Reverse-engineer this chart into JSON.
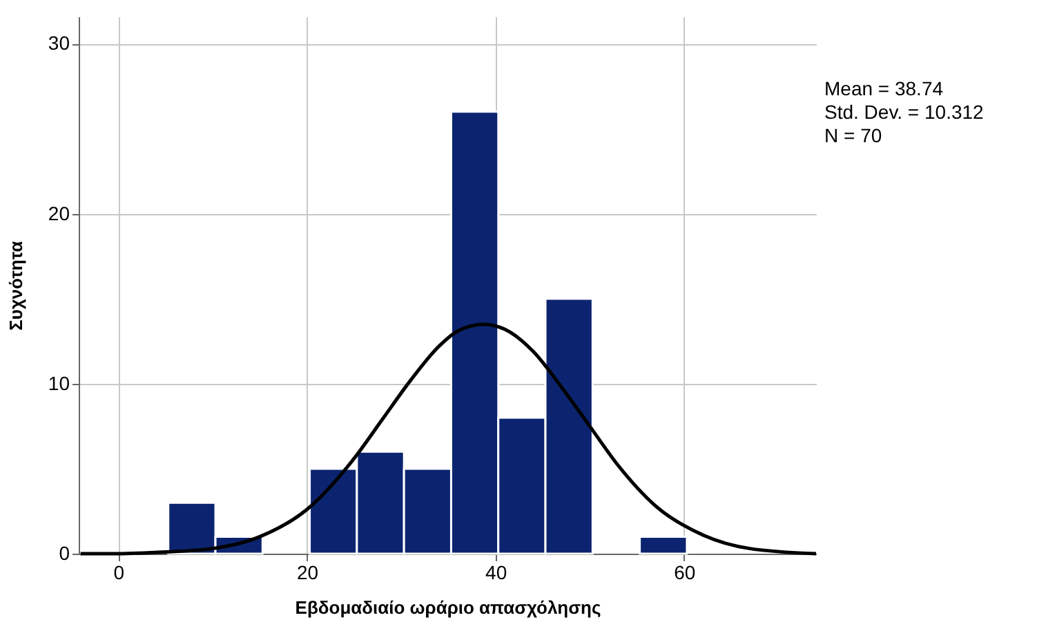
{
  "chart_data": {
    "type": "histogram",
    "xlabel": "Εβδομαδιαίο ωράριο απασχόλησης",
    "ylabel": "Συχνότητα",
    "bins": [
      5.3,
      10.3,
      15.3,
      20.3,
      25.3,
      30.3,
      35.3,
      40.3,
      45.3,
      50.3,
      55.3,
      60.3
    ],
    "series": [
      {
        "type": "histogram",
        "color": "#0c2470",
        "values": [
          3,
          1,
          0,
          5,
          6,
          5,
          26,
          8,
          15,
          0,
          1
        ]
      },
      {
        "type": "line",
        "color": "#000000",
        "x": [
          -4,
          0,
          5,
          10,
          15,
          20,
          25,
          28,
          31,
          34,
          36,
          38.74,
          41,
          44,
          47,
          50,
          53,
          57,
          62,
          67,
          74
        ],
        "values": [
          0,
          0,
          0.1,
          0.3,
          1,
          2.6,
          5.6,
          7.9,
          10.2,
          12.2,
          13.1,
          13.5,
          13.2,
          11.9,
          9.8,
          7.5,
          5.2,
          2.8,
          1.1,
          0.3,
          0
        ]
      }
    ],
    "xlim": [
      -4.2,
      74
    ],
    "ylim": [
      0,
      31.6
    ],
    "xticks": [
      0,
      20,
      40,
      60
    ],
    "yticks": [
      0,
      10,
      20,
      30
    ],
    "grid": true,
    "annotations": [
      "Mean = 38.74",
      "Std. Dev. = 10.312",
      "N = 70"
    ]
  }
}
